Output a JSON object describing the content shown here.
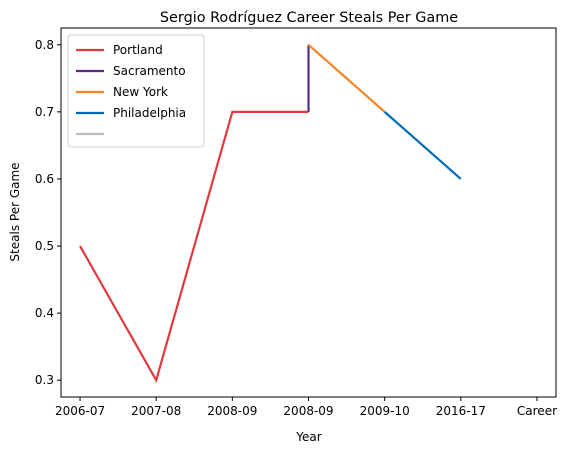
{
  "chart_data": {
    "type": "line",
    "title": "Sergio Rodríguez Career Steals Per Game",
    "xlabel": "Year",
    "ylabel": "Steals Per Game",
    "categories": [
      "2006-07",
      "2007-08",
      "2008-09",
      "2008-09",
      "2009-10",
      "2016-17",
      "Career"
    ],
    "ylim": [
      0.275,
      0.825
    ],
    "yticks": [
      0.3,
      0.4,
      0.5,
      0.6,
      0.7,
      0.8
    ],
    "grid": false,
    "legend_position": "top-left",
    "series": [
      {
        "name": "Portland",
        "color": "#e03a3e",
        "points": [
          [
            0,
            0.5
          ],
          [
            1,
            0.3
          ],
          [
            2,
            0.7
          ],
          [
            3,
            0.7
          ]
        ]
      },
      {
        "name": "Sacramento",
        "color": "#5a2d81",
        "points": [
          [
            3,
            0.7
          ],
          [
            3,
            0.8
          ]
        ]
      },
      {
        "name": "New York",
        "color": "#f58426",
        "points": [
          [
            3,
            0.8
          ],
          [
            4,
            0.7
          ]
        ]
      },
      {
        "name": "Philadelphia",
        "color": "#006bb6",
        "points": [
          [
            4,
            0.7
          ],
          [
            5,
            0.6
          ]
        ]
      },
      {
        "name": "",
        "color": "#bebebe",
        "points": []
      }
    ]
  }
}
